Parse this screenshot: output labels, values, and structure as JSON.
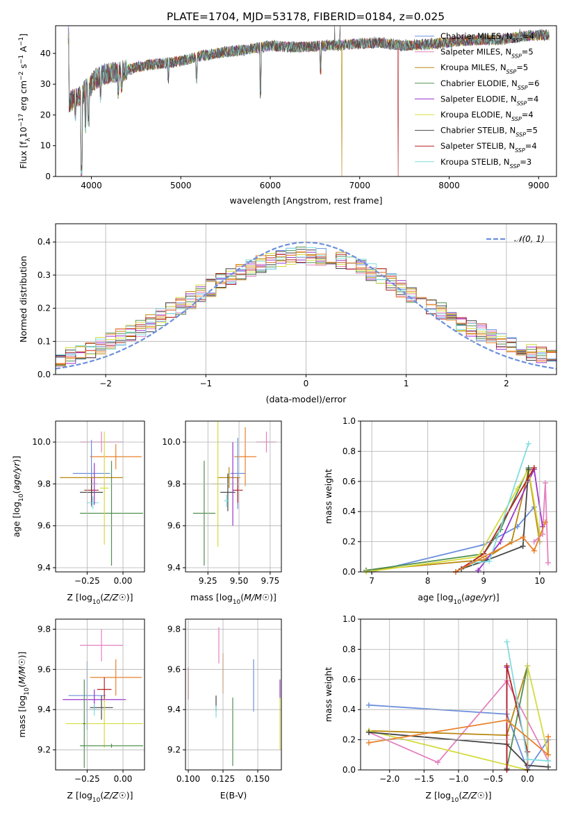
{
  "figure_title": "PLATE=1704, MJD=53178, FIBERID=0184, z=0.025",
  "colors": {
    "Chabrier MILES": "#6a8fdc",
    "Salpeter MILES": "#e57fbf",
    "Kroupa MILES": "#b8860b",
    "Chabrier ELODIE": "#4f8f4f",
    "Salpeter ELODIE": "#9a32cd",
    "Kroupa ELODIE": "#d4dc3c",
    "Chabrier STELIB": "#444444",
    "Salpeter STELIB": "#b22222",
    "Kroupa STELIB": "#7fdde0",
    "orange": "#e8802a",
    "gauss": "#6a8fdc"
  },
  "chart_data": [
    {
      "type": "line",
      "id": "spectrum",
      "xlabel": "wavelength [Angstrom, rest frame]",
      "ylabel": "Flux [fλ10⁻¹⁷ erg cm⁻² s⁻¹ A⁻¹]",
      "xlim": [
        3600,
        9200
      ],
      "ylim": [
        0,
        49
      ],
      "xticks": [
        4000,
        5000,
        6000,
        7000,
        8000,
        9000
      ],
      "yticks": [
        0,
        10,
        20,
        30,
        40
      ],
      "legend_placement": "right",
      "legend": [
        "Chabrier MILES, N_SSP=4",
        "Salpeter MILES, N_SSP=5",
        "Kroupa MILES, N_SSP=5",
        "Chabrier ELODIE, N_SSP=6",
        "Salpeter ELODIE, N_SSP=4",
        "Kroupa ELODIE, N_SSP=4",
        "Chabrier STELIB, N_SSP=5",
        "Salpeter STELIB, N_SSP=4",
        "Kroupa STELIB, N_SSP=3"
      ],
      "legend_text": [
        {
          "name": "Chabrier MILES, N",
          "sub": "SSP",
          "tail": "=4"
        },
        {
          "name": "Salpeter MILES, N",
          "sub": "SSP",
          "tail": "=5"
        },
        {
          "name": "Kroupa MILES, N",
          "sub": "SSP",
          "tail": "=5"
        },
        {
          "name": "Chabrier ELODIE, N",
          "sub": "SSP",
          "tail": "=6"
        },
        {
          "name": "Salpeter ELODIE, N",
          "sub": "SSP",
          "tail": "=4"
        },
        {
          "name": "Kroupa ELODIE, N",
          "sub": "SSP",
          "tail": "=4"
        },
        {
          "name": "Chabrier STELIB, N",
          "sub": "SSP",
          "tail": "=5"
        },
        {
          "name": "Salpeter STELIB, N",
          "sub": "SSP",
          "tail": "=4"
        },
        {
          "name": "Kroupa STELIB, N",
          "sub": "SSP",
          "tail": "=3"
        }
      ],
      "continuum": {
        "x": [
          3750,
          3900,
          4000,
          4100,
          4300,
          4500,
          4700,
          5000,
          5200,
          5500,
          5800,
          6000,
          6300,
          6600,
          6900,
          7200,
          7500,
          7800,
          8100,
          8400,
          8600,
          8800,
          9000,
          9100
        ],
        "y": [
          24,
          27,
          30,
          33,
          34,
          35.5,
          36.5,
          37.5,
          39,
          40.5,
          41.5,
          42.5,
          42,
          42.5,
          43,
          43.5,
          42.5,
          43,
          44,
          44.5,
          44.5,
          45.5,
          46,
          46
        ]
      },
      "absorption_lines": [
        {
          "x": 3820,
          "y": 18
        },
        {
          "x": 3890,
          "y": 0
        },
        {
          "x": 3933,
          "y": 14
        },
        {
          "x": 3968,
          "y": 16
        },
        {
          "x": 4102,
          "y": 24
        },
        {
          "x": 4300,
          "y": 25
        },
        {
          "x": 4340,
          "y": 27
        },
        {
          "x": 4861,
          "y": 30
        },
        {
          "x": 5175,
          "y": 30
        },
        {
          "x": 5890,
          "y": 25
        },
        {
          "x": 6563,
          "y": 33
        }
      ],
      "model_dropouts": [
        {
          "x": 6798,
          "y": 0,
          "series": "Kroupa MILES"
        },
        {
          "x": 7430,
          "y": 0,
          "series": "Salpeter STELIB"
        }
      ],
      "emission_spikes": [
        {
          "x": 6720,
          "y": 49
        },
        {
          "x": 6780,
          "y": 49
        },
        {
          "x": 8790,
          "y": 48
        }
      ]
    },
    {
      "type": "line",
      "id": "residual-histograms",
      "xlabel": "(data-model)/error",
      "ylabel": "Normed distribution",
      "xlim": [
        -2.5,
        2.5
      ],
      "ylim": [
        0,
        0.455
      ],
      "xticks": [
        -2,
        -1,
        0,
        1,
        2
      ],
      "yticks": [
        0.0,
        0.1,
        0.2,
        0.3,
        0.4
      ],
      "grid": true,
      "legend_placement": "top-right",
      "legend": [
        "𝒩(0, 1)"
      ],
      "gaussian": {
        "mu": 0,
        "sigma": 1
      },
      "histogram_bins": {
        "start": -2.5,
        "width": 0.1,
        "count": 50
      },
      "histogram_series": [
        "Chabrier MILES",
        "Salpeter MILES",
        "Kroupa MILES",
        "Chabrier ELODIE",
        "Salpeter ELODIE",
        "Kroupa ELODIE",
        "Chabrier STELIB",
        "Salpeter STELIB",
        "Kroupa STELIB",
        "orange"
      ]
    },
    {
      "type": "scatter",
      "id": "age-vs-Z",
      "xlabel": "Z [log10(Z/Z☉)]",
      "ylabel": "age  [log10(age/yr)]",
      "xlim": [
        -0.47,
        0.15
      ],
      "ylim": [
        9.38,
        10.1
      ],
      "xticks": [
        -0.25,
        0.0
      ],
      "yticks": [
        9.4,
        9.6,
        9.8,
        10.0
      ],
      "grid": true,
      "errorbars": [
        {
          "series": "Salpeter MILES",
          "x": -0.15,
          "xerr": 0.15,
          "y": 10.0,
          "yerr": 0.05
        },
        {
          "series": "orange",
          "x": -0.05,
          "xerr": 0.18,
          "y": 9.93,
          "yerr": 0.06
        },
        {
          "series": "Kroupa MILES",
          "x": -0.22,
          "xerr": 0.22,
          "y": 9.83,
          "yerr": 0.05
        },
        {
          "series": "Chabrier MILES",
          "x": -0.22,
          "xerr": 0.13,
          "y": 9.85,
          "yerr": 0.16
        },
        {
          "series": "Salpeter STELIB",
          "x": -0.22,
          "xerr": 0.05,
          "y": 9.77,
          "yerr": 0.06
        },
        {
          "series": "Chabrier STELIB",
          "x": -0.22,
          "xerr": 0.08,
          "y": 9.76,
          "yerr": 0.06
        },
        {
          "series": "Kroupa STELIB",
          "x": -0.21,
          "xerr": 0.04,
          "y": 9.71,
          "yerr": 0.03
        },
        {
          "series": "Chabrier ELODIE",
          "x": -0.08,
          "xerr": 0.22,
          "y": 9.66,
          "yerr": 0.25
        },
        {
          "series": "Kroupa ELODIE",
          "x": -0.13,
          "xerr": 0.03,
          "y": 9.78,
          "yerr": 0.27
        },
        {
          "series": "Salpeter ELODIE",
          "x": -0.2,
          "xerr": 0.02,
          "y": 9.8,
          "yerr": 0.1
        }
      ]
    },
    {
      "type": "scatter",
      "id": "age-vs-mass",
      "xlabel": "mass [log10(M/M☉)]",
      "ylabel": "",
      "xlim": [
        9.07,
        9.84
      ],
      "ylim": [
        9.38,
        10.1
      ],
      "xticks": [
        9.25,
        9.5,
        9.75
      ],
      "yticks": [
        9.4,
        9.6,
        9.8,
        10.0
      ],
      "grid": true,
      "errorbars": [
        {
          "series": "Salpeter MILES",
          "x": 9.72,
          "xerr": 0.08,
          "y": 10.0,
          "yerr": 0.05
        },
        {
          "series": "orange",
          "x": 9.55,
          "xerr": 0.09,
          "y": 9.93,
          "yerr": 0.14
        },
        {
          "series": "Chabrier MILES",
          "x": 9.49,
          "xerr": 0.06,
          "y": 9.85,
          "yerr": 0.17
        },
        {
          "series": "Kroupa MILES",
          "x": 9.42,
          "xerr": 0.09,
          "y": 9.83,
          "yerr": 0.05
        },
        {
          "series": "Salpeter STELIB",
          "x": 9.49,
          "xerr": 0.04,
          "y": 9.77,
          "yerr": 0.06
        },
        {
          "series": "Chabrier STELIB",
          "x": 9.41,
          "xerr": 0.06,
          "y": 9.76,
          "yerr": 0.09
        },
        {
          "series": "Kroupa STELIB",
          "x": 9.4,
          "xerr": 0.02,
          "y": 9.72,
          "yerr": 0.03
        },
        {
          "series": "Chabrier ELODIE",
          "x": 9.22,
          "xerr": 0.09,
          "y": 9.66,
          "yerr": 0.25
        },
        {
          "series": "Kroupa ELODIE",
          "x": 9.33,
          "xerr": 0.05,
          "y": 9.8,
          "yerr": 0.3
        },
        {
          "series": "Salpeter ELODIE",
          "x": 9.45,
          "xerr": 0.01,
          "y": 9.8,
          "yerr": 0.2
        }
      ]
    },
    {
      "type": "line",
      "id": "mass-weight-vs-age",
      "xlabel": "age  [log10(age/yr)]",
      "ylabel": "mass weight",
      "xlim": [
        6.8,
        10.3
      ],
      "ylim": [
        0,
        1.0
      ],
      "xticks": [
        7,
        8,
        9,
        10
      ],
      "yticks": [
        0.0,
        0.2,
        0.4,
        0.6,
        0.8,
        1.0
      ],
      "grid": true,
      "series": [
        {
          "name": "Chabrier MILES",
          "x": [
            7.0,
            9.0,
            9.6,
            9.9
          ],
          "y": [
            0.0,
            0.18,
            0.3,
            0.43
          ]
        },
        {
          "name": "Salpeter MILES",
          "x": [
            9.9,
            10.05,
            10.1,
            10.15
          ],
          "y": [
            0.2,
            0.25,
            0.59,
            0.06
          ]
        },
        {
          "name": "Kroupa MILES",
          "x": [
            6.9,
            9.0,
            9.5,
            9.8,
            10.0
          ],
          "y": [
            0.01,
            0.08,
            0.2,
            0.67,
            0.2
          ]
        },
        {
          "name": "Chabrier ELODIE",
          "x": [
            6.9,
            9.0,
            9.3,
            9.8
          ],
          "y": [
            0.01,
            0.12,
            0.28,
            0.69
          ]
        },
        {
          "name": "Salpeter ELODIE",
          "x": [
            8.9,
            9.3,
            9.9,
            10.05
          ],
          "y": [
            0.01,
            0.2,
            0.68,
            0.3
          ]
        },
        {
          "name": "Kroupa ELODIE",
          "x": [
            6.9,
            8.9,
            9.6,
            9.8,
            10.0
          ],
          "y": [
            0.0,
            0.1,
            0.55,
            0.68,
            0.25
          ]
        },
        {
          "name": "Chabrier STELIB",
          "x": [
            8.6,
            9.0,
            9.7,
            9.8
          ],
          "y": [
            0.02,
            0.07,
            0.17,
            0.68
          ]
        },
        {
          "name": "Salpeter STELIB",
          "x": [
            8.5,
            9.0,
            9.9
          ],
          "y": [
            0.0,
            0.12,
            0.69
          ]
        },
        {
          "name": "Kroupa STELIB",
          "x": [
            8.8,
            9.1,
            9.8
          ],
          "y": [
            0.06,
            0.07,
            0.85
          ]
        },
        {
          "name": "orange",
          "x": [
            8.5,
            9.0,
            9.7,
            9.9,
            10.1
          ],
          "y": [
            0.0,
            0.1,
            0.23,
            0.14,
            0.33
          ]
        }
      ]
    },
    {
      "type": "scatter",
      "id": "mass-vs-Z",
      "xlabel": "Z [log10(Z/Z☉)]",
      "ylabel": "mass [log10(M/M☉)]",
      "xlim": [
        -0.47,
        0.15
      ],
      "ylim": [
        9.1,
        9.85
      ],
      "xticks": [
        -0.25,
        0.0
      ],
      "yticks": [
        9.2,
        9.4,
        9.6,
        9.8
      ],
      "grid": true,
      "errorbars": [
        {
          "series": "Salpeter MILES",
          "x": -0.15,
          "xerr": 0.15,
          "y": 9.72,
          "yerr": 0.08
        },
        {
          "series": "orange",
          "x": -0.05,
          "xerr": 0.18,
          "y": 9.56,
          "yerr": 0.09
        },
        {
          "series": "Chabrier MILES",
          "x": -0.25,
          "xerr": 0.13,
          "y": 9.47,
          "yerr": 0.17
        },
        {
          "series": "Salpeter STELIB",
          "x": -0.13,
          "xerr": 0.05,
          "y": 9.5,
          "yerr": 0.06
        },
        {
          "series": "Salpeter ELODIE",
          "x": -0.2,
          "xerr": 0.22,
          "y": 9.45,
          "yerr": 0.05
        },
        {
          "series": "Chabrier STELIB",
          "x": -0.15,
          "xerr": 0.08,
          "y": 9.41,
          "yerr": 0.06
        },
        {
          "series": "Kroupa STELIB",
          "x": -0.2,
          "xerr": 0.04,
          "y": 9.4,
          "yerr": 0.03
        },
        {
          "series": "Kroupa ELODIE",
          "x": -0.13,
          "xerr": 0.27,
          "y": 9.33,
          "yerr": 0.12
        },
        {
          "series": "Chabrier ELODIE",
          "x": -0.08,
          "xerr": 0.22,
          "y": 9.22,
          "yerr": 0.01
        },
        {
          "series": "Chabrier ELODIE",
          "x": -0.27,
          "xerr": 0.01,
          "y": 9.33,
          "yerr": 0.22
        }
      ]
    },
    {
      "type": "scatter",
      "id": "mass-vs-EBV",
      "xlabel": "E(B-V)",
      "ylabel": "",
      "xlim": [
        0.098,
        0.167
      ],
      "ylim": [
        9.1,
        9.85
      ],
      "xticks": [
        0.1,
        0.125,
        0.15
      ],
      "yticks": [
        9.2,
        9.4,
        9.6,
        9.8
      ],
      "grid": true,
      "errorbars": [
        {
          "series": "Salpeter STELIB",
          "x": 0.1,
          "y": 9.53,
          "yerr": 0.08
        },
        {
          "series": "Salpeter MILES",
          "x": 0.122,
          "y": 9.72,
          "yerr": 0.09
        },
        {
          "series": "orange",
          "x": 0.125,
          "y": 9.58,
          "yerr": 0.1
        },
        {
          "series": "Chabrier STELIB",
          "x": 0.12,
          "y": 9.43,
          "yerr": 0.04
        },
        {
          "series": "Kroupa STELIB",
          "x": 0.12,
          "y": 9.39,
          "yerr": 0.03
        },
        {
          "series": "Chabrier ELODIE",
          "x": 0.132,
          "y": 9.29,
          "yerr": 0.17
        },
        {
          "series": "Chabrier MILES",
          "x": 0.147,
          "y": 9.52,
          "yerr": 0.13
        },
        {
          "series": "Salpeter ELODIE",
          "x": 0.166,
          "y": 9.5,
          "yerr": 0.05
        },
        {
          "series": "Kroupa ELODIE",
          "x": 0.166,
          "y": 9.33,
          "yerr": 0.13
        }
      ]
    },
    {
      "type": "line",
      "id": "mass-weight-vs-Z",
      "xlabel": "Z [log10(Z/Z☉)]",
      "ylabel": "mass weight",
      "xlim": [
        -2.42,
        0.42
      ],
      "ylim": [
        0,
        1.0
      ],
      "xticks": [
        -2.0,
        -1.5,
        -1.0,
        -0.5,
        0.0
      ],
      "yticks": [
        0.0,
        0.2,
        0.4,
        0.6,
        0.8,
        1.0
      ],
      "grid": true,
      "series": [
        {
          "name": "Chabrier MILES",
          "x": [
            -2.3,
            -0.3,
            0.0,
            0.3
          ],
          "y": [
            0.43,
            0.37,
            0.0,
            0.2
          ]
        },
        {
          "name": "Salpeter MILES",
          "x": [
            -2.3,
            -1.3,
            -0.3,
            0.3
          ],
          "y": [
            0.25,
            0.05,
            0.59,
            0.06
          ]
        },
        {
          "name": "Kroupa MILES",
          "x": [
            -2.3,
            -0.3,
            0.0
          ],
          "y": [
            0.26,
            0.23,
            0.69
          ]
        },
        {
          "name": "Chabrier ELODIE",
          "x": [
            -0.3,
            0.0,
            0.0
          ],
          "y": [
            0.01,
            0.69,
            0.0
          ]
        },
        {
          "name": "Salpeter ELODIE",
          "x": [
            -0.3,
            -0.3
          ],
          "y": [
            0.0,
            0.68
          ]
        },
        {
          "name": "Kroupa ELODIE",
          "x": [
            -2.3,
            0.0,
            0.0,
            0.3
          ],
          "y": [
            0.26,
            0.0,
            0.69,
            0.1
          ]
        },
        {
          "name": "Chabrier STELIB",
          "x": [
            -2.3,
            -0.3,
            0.0,
            0.3
          ],
          "y": [
            0.25,
            0.17,
            0.03,
            0.02
          ]
        },
        {
          "name": "Salpeter STELIB",
          "x": [
            -0.3,
            -0.3,
            0.0,
            0.0
          ],
          "y": [
            0.0,
            0.69,
            0.12,
            0.0
          ]
        },
        {
          "name": "Kroupa STELIB",
          "x": [
            -0.3,
            0.0,
            0.3
          ],
          "y": [
            0.85,
            0.07,
            0.06
          ]
        },
        {
          "name": "orange",
          "x": [
            -2.3,
            -0.3,
            0.3,
            0.3
          ],
          "y": [
            0.18,
            0.33,
            0.1,
            0.22
          ]
        }
      ]
    }
  ]
}
